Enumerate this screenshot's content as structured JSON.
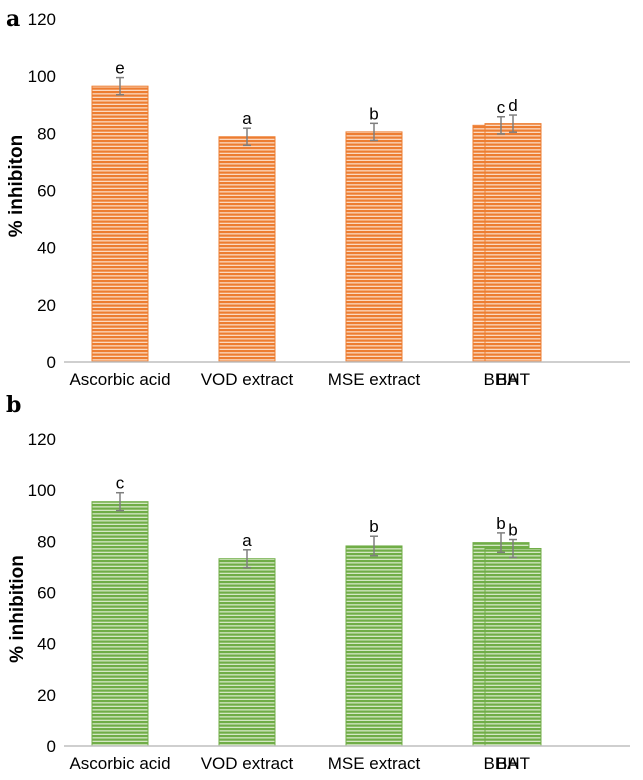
{
  "chart_data": [
    {
      "panel": "a",
      "type": "bar",
      "ylabel": "% inhibiton",
      "xlabel": "",
      "ylim": [
        0,
        120
      ],
      "yticks": [
        0,
        20,
        40,
        60,
        80,
        100,
        120
      ],
      "categories": [
        "Ascorbic acid",
        "VOD extract",
        "MSE extract",
        "BHA",
        "BHT"
      ],
      "values": [
        96.5,
        78.8,
        80.5,
        82.8,
        83.4
      ],
      "errors": [
        3.0,
        3.0,
        3.0,
        3.0,
        3.0
      ],
      "significance": [
        "e",
        "a",
        "b",
        "c",
        "d"
      ],
      "color": "#ed7d31",
      "stripe_color": "#fbd9c0"
    },
    {
      "panel": "b",
      "type": "bar",
      "ylabel": "% inhibition",
      "xlabel": "",
      "ylim": [
        0,
        120
      ],
      "yticks": [
        0,
        20,
        40,
        60,
        80,
        100,
        120
      ],
      "categories": [
        "Ascorbic acid",
        "VOD extract",
        "MSE extract",
        "BHA",
        "BHT"
      ],
      "values": [
        95.5,
        73.2,
        78.2,
        79.5,
        77.2
      ],
      "errors": [
        3.5,
        3.5,
        3.8,
        3.8,
        3.5
      ],
      "significance": [
        "c",
        "a",
        "b",
        "b",
        "b"
      ],
      "color": "#70ad47",
      "stripe_color": "#d4e8c4"
    }
  ]
}
